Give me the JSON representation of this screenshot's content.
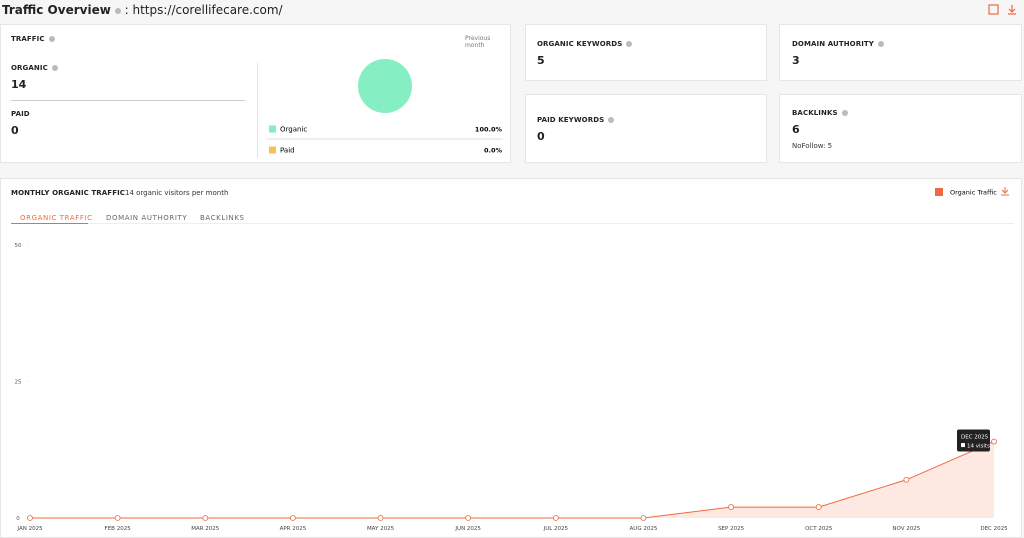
{
  "header": {
    "title": "Traffic Overview",
    "domain": ": https://corellifecare.com/"
  },
  "traffic": {
    "label": "TRAFFIC",
    "period": "Previous month",
    "organic": {
      "label": "ORGANIC",
      "value": 14
    },
    "paid": {
      "label": "PAID",
      "value": 0
    }
  },
  "cards": [
    {
      "label": "ORGANIC KEYWORDS",
      "value": 5
    },
    {
      "label": "DOMAIN AUTHORITY",
      "value": 3
    },
    {
      "label": "PAID KEYWORDS",
      "value": 0
    },
    {
      "label": "BACKLINKS",
      "value": 6,
      "note": "NoFollow: 5"
    }
  ],
  "monthly": {
    "title": "MONTHLY ORGANIC TRAFFIC",
    "subtitle": "14 organic visitors per month",
    "tabs": [
      "ORGANIC TRAFFIC",
      "DOMAIN AUTHORITY",
      "BACKLINKS"
    ],
    "tooltip": {
      "title": "DEC 2025",
      "text": "14 visits"
    }
  },
  "chart_data": [
    {
      "type": "pie",
      "categories": [
        "Organic",
        "Paid"
      ],
      "values": [
        100,
        0
      ],
      "value_labels": [
        "100.0%",
        "0.0%"
      ],
      "colors": [
        "#86eec3",
        "#f5c15a"
      ]
    },
    {
      "type": "line",
      "categories": [
        "JAN 2025",
        "FEB 2025",
        "MAR 2025",
        "APR 2025",
        "MAY 2025",
        "JUN 2025",
        "JUL 2025",
        "AUG 2025",
        "SEP 2025",
        "OCT 2025",
        "NOV 2025",
        "DEC 2025"
      ],
      "series": [
        {
          "name": "Organic Traffic",
          "color": "#ef6a3f",
          "values": [
            0,
            0,
            0,
            0,
            0,
            0,
            0,
            0,
            2,
            2,
            7,
            14
          ]
        }
      ],
      "ylim": [
        0,
        50
      ],
      "yticks": [
        0,
        25,
        50
      ],
      "area": true
    }
  ]
}
